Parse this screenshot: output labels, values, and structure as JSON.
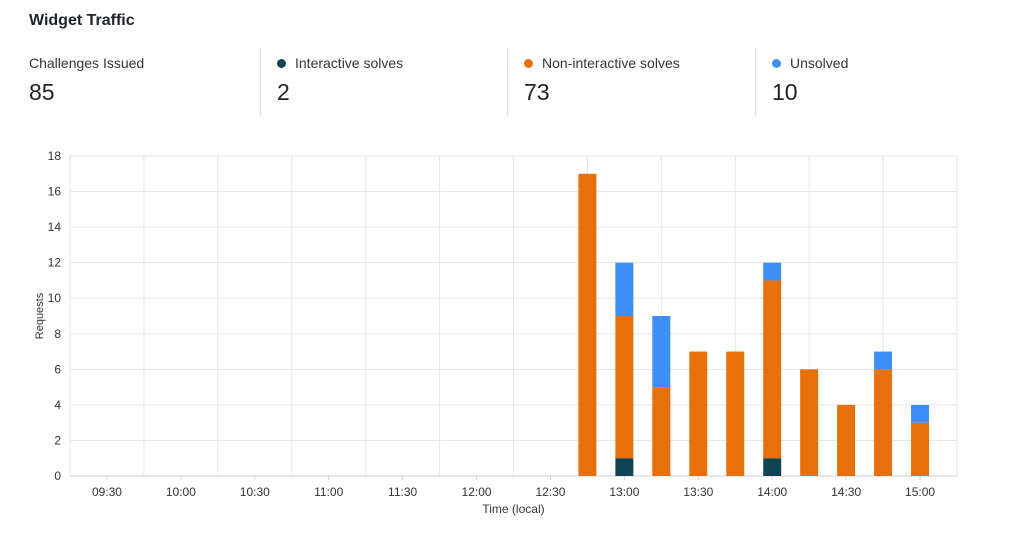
{
  "widget": {
    "title": "Widget Traffic"
  },
  "stats": [
    {
      "label": "Challenges Issued",
      "value": "85"
    },
    {
      "label": "Interactive solves",
      "value": "2",
      "color": "#0f4454"
    },
    {
      "label": "Non-interactive solves",
      "value": "73",
      "color": "#e8700a"
    },
    {
      "label": "Unsolved",
      "value": "10",
      "color": "#3d8ef6"
    }
  ],
  "chart_data": {
    "type": "bar",
    "stacked": true,
    "ylabel": "Requests",
    "xlabel": "Time (local)",
    "ylim": [
      0,
      18
    ],
    "yticks": [
      0,
      2,
      4,
      6,
      8,
      10,
      12,
      14,
      16,
      18
    ],
    "grid": true,
    "x_range": [
      "09:15",
      "15:15"
    ],
    "xticks": [
      "09:30",
      "10:00",
      "10:30",
      "11:00",
      "11:30",
      "12:00",
      "12:30",
      "13:00",
      "13:30",
      "14:00",
      "14:30",
      "15:00"
    ],
    "categories": [
      "12:45",
      "13:00",
      "13:15",
      "13:30",
      "13:45",
      "14:00",
      "14:15",
      "14:30",
      "14:45",
      "15:00"
    ],
    "series": [
      {
        "name": "Interactive solves",
        "color": "#0f4454",
        "values": [
          0,
          1,
          0,
          0,
          0,
          1,
          0,
          0,
          0,
          0
        ]
      },
      {
        "name": "Non-interactive solves",
        "color": "#e8700a",
        "values": [
          17,
          8,
          5,
          7,
          7,
          10,
          6,
          4,
          6,
          3
        ]
      },
      {
        "name": "Unsolved",
        "color": "#3d8ef6",
        "values": [
          0,
          3,
          4,
          0,
          0,
          1,
          0,
          0,
          1,
          1
        ]
      }
    ]
  }
}
